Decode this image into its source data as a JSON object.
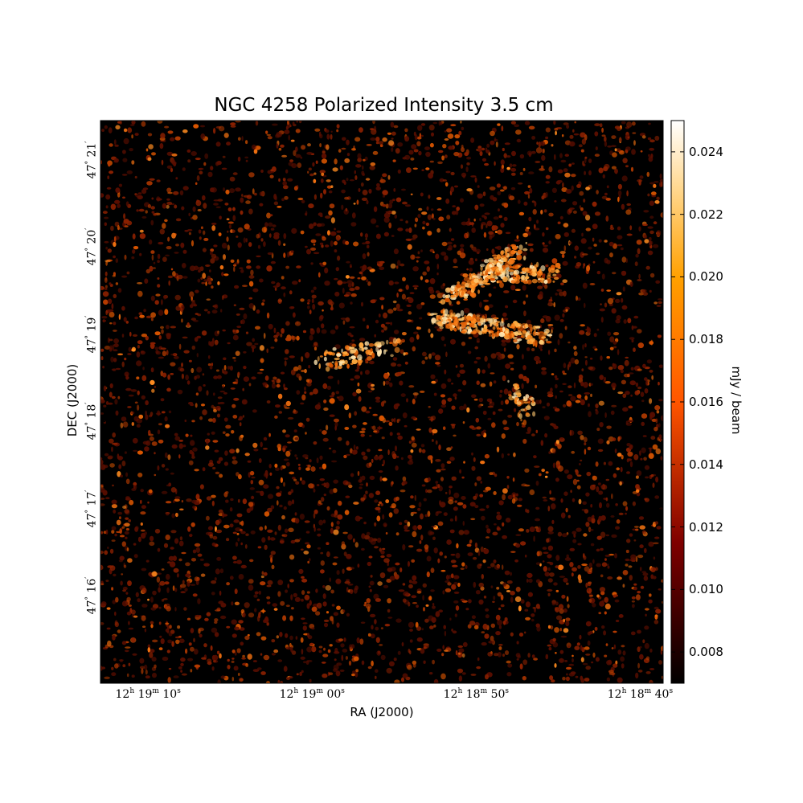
{
  "chart_data": {
    "type": "heatmap",
    "title": "NGC 4258 Polarized Intensity 3.5 cm",
    "xlabel": "RA (J2000)",
    "ylabel": "DEC (J2000)",
    "colorbar": {
      "label": "mJy / beam",
      "range": [
        0.007,
        0.025
      ],
      "colormap": "afmhot",
      "ticks": [
        "0.008",
        "0.010",
        "0.012",
        "0.014",
        "0.016",
        "0.018",
        "0.020",
        "0.022",
        "0.024"
      ],
      "tick_values": [
        0.008,
        0.01,
        0.012,
        0.014,
        0.016,
        0.018,
        0.02,
        0.022,
        0.024
      ]
    },
    "x_ticks": [
      {
        "h": "12",
        "m": "19",
        "s": "10"
      },
      {
        "h": "12",
        "m": "19",
        "s": "00"
      },
      {
        "h": "12",
        "m": "18",
        "s": "50"
      },
      {
        "h": "12",
        "m": "18",
        "s": "40"
      }
    ],
    "x_tick_seconds": [
      10,
      0,
      -10,
      -20
    ],
    "x_range_seconds": [
      12.9,
      -21.4
    ],
    "y_ticks": [
      {
        "deg": "47",
        "min": "21"
      },
      {
        "deg": "47",
        "min": "20"
      },
      {
        "deg": "47",
        "min": "19"
      },
      {
        "deg": "47",
        "min": "18"
      },
      {
        "deg": "47",
        "min": "17"
      },
      {
        "deg": "47",
        "min": "16"
      }
    ],
    "y_tick_minutes": [
      21,
      20,
      19,
      18,
      17,
      16
    ],
    "y_range_minutes": [
      15.0,
      21.45
    ],
    "hint": {
      "x": 12.9,
      "y": 21.45
    }
  }
}
